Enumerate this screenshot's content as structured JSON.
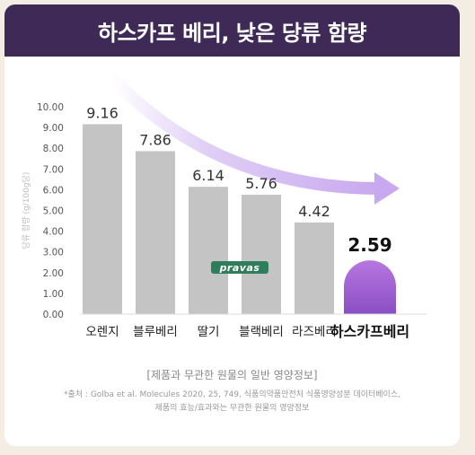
{
  "header": {
    "title": "하스카프 베리, 낮은 당류 함량"
  },
  "chart_data": {
    "type": "bar",
    "categories": [
      "오렌지",
      "블루베리",
      "딸기",
      "블랙베리",
      "라즈베리",
      "하스카프베리"
    ],
    "values": [
      9.16,
      7.86,
      6.14,
      5.76,
      4.42,
      2.59
    ],
    "value_labels": [
      "9.16",
      "7.86",
      "6.14",
      "5.76",
      "4.42",
      "2.59"
    ],
    "highlight_index": 5,
    "ylabel": "당류 함량 (g/100g당)",
    "ylim": [
      0,
      10
    ],
    "yticks": [
      "0.00",
      "1.00",
      "2.00",
      "3.00",
      "4.00",
      "5.00",
      "6.00",
      "7.00",
      "8.00",
      "9.00",
      "10.00"
    ],
    "grid": false,
    "colors": {
      "bar": "#c4c4c4",
      "highlight_top": "#b877e0",
      "highlight_bottom": "#8a4fc4",
      "arrow": "#c8a8ee"
    }
  },
  "watermark": "pravas",
  "notes": {
    "line1": "[제품과 무관한 원물의 일반 영양정보]",
    "line2": "*출처 : Golba et al. Molecules 2020, 25, 749, 식품의약품안전처 식품영양성분 데이터베이스,",
    "line3": "제품의 효능/효과와는 무관한 원물의 영양정보"
  },
  "colors": {
    "header_bg": "#3f2a57",
    "page_bg": "#f3ede3"
  }
}
